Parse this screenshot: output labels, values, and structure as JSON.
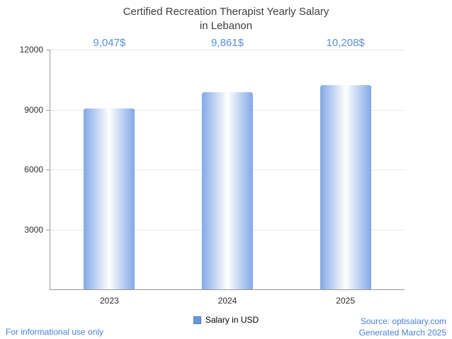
{
  "title": {
    "line1": "Certified Recreation Therapist Yearly Salary",
    "line2": "in Lebanon"
  },
  "chart_data": {
    "type": "bar",
    "title": "Certified Recreation Therapist Yearly Salary in Lebanon",
    "categories": [
      "2023",
      "2024",
      "2025"
    ],
    "values": [
      9047,
      9861,
      10208
    ],
    "value_labels": [
      "9,047$",
      "9,861$",
      "10,208$"
    ],
    "series_name": "Salary in USD",
    "xlabel": "",
    "ylabel": "",
    "ylim": [
      0,
      12000
    ],
    "yticks": [
      3000,
      6000,
      9000,
      12000
    ],
    "grid": true,
    "legend_position": "bottom"
  },
  "legend": {
    "label": "Salary in USD"
  },
  "footer": {
    "left": "For informational use only",
    "source": "Source: optisalary.com",
    "generated": "Generated March 2025"
  },
  "colors": {
    "title-text": "#3e3e3e",
    "axis-text": "#2e2e2e",
    "axis-line": "#9a9a9a",
    "gridline": "#e6e6e6",
    "bar-edge": "#82a8e7",
    "bar-center": "#ffffff",
    "value-label": "#5b8fd9",
    "legend-swatch": "#6b96dd",
    "footer-link": "#4a80d9"
  }
}
